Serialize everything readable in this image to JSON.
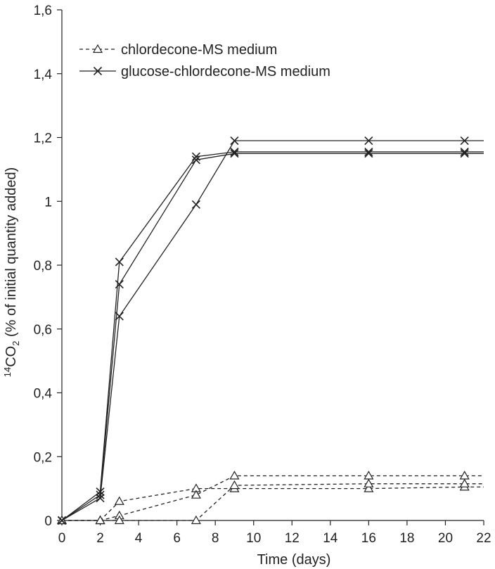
{
  "chart_data": {
    "type": "line",
    "xlabel": "Time (days)",
    "ylabel_prefix_sup": "14",
    "ylabel_main": "CO",
    "ylabel_sub": "2",
    "ylabel_suffix": " (% of initial quantity added)",
    "xlim": [
      0,
      22
    ],
    "ylim": [
      0,
      1.6
    ],
    "xticks": [
      "0",
      "2",
      "4",
      "6",
      "8",
      "10",
      "12",
      "14",
      "16",
      "18",
      "20",
      "22"
    ],
    "yticks": [
      "0",
      "0,2",
      "0,4",
      "0,6",
      "0,8",
      "1",
      "1,2",
      "1,4",
      "1,6"
    ],
    "x": [
      0,
      2,
      3,
      7,
      9,
      16,
      21,
      22
    ],
    "legend": [
      {
        "label": "chlordecone-MS medium",
        "marker": "triangle",
        "dash": "dashed"
      },
      {
        "label": "glucose-chlordecone-MS medium",
        "marker": "x",
        "dash": "solid"
      }
    ],
    "series": [
      {
        "group": "chlordecone-MS medium",
        "points": [
          [
            0,
            0
          ],
          [
            2,
            0
          ],
          [
            3,
            0.06
          ],
          [
            7,
            0.1
          ],
          [
            9,
            0.1
          ],
          [
            16,
            0.1
          ],
          [
            21,
            0.105
          ],
          [
            22,
            0.105
          ]
        ]
      },
      {
        "group": "chlordecone-MS medium",
        "points": [
          [
            0,
            0
          ],
          [
            2,
            0
          ],
          [
            3,
            0.015
          ],
          [
            7,
            0.08
          ],
          [
            9,
            0.14
          ],
          [
            16,
            0.14
          ],
          [
            21,
            0.14
          ],
          [
            22,
            0.14
          ]
        ]
      },
      {
        "group": "chlordecone-MS medium",
        "points": [
          [
            0,
            0
          ],
          [
            2,
            0
          ],
          [
            3,
            0
          ],
          [
            7,
            0
          ],
          [
            9,
            0.11
          ],
          [
            16,
            0.115
          ],
          [
            21,
            0.115
          ],
          [
            22,
            0.115
          ]
        ]
      },
      {
        "group": "glucose-chlordecone-MS medium",
        "points": [
          [
            0,
            0
          ],
          [
            2,
            0.09
          ],
          [
            3,
            0.81
          ],
          [
            7,
            1.14
          ],
          [
            9,
            1.155
          ],
          [
            16,
            1.155
          ],
          [
            21,
            1.155
          ],
          [
            22,
            1.155
          ]
        ]
      },
      {
        "group": "glucose-chlordecone-MS medium",
        "points": [
          [
            0,
            0
          ],
          [
            2,
            0.08
          ],
          [
            3,
            0.74
          ],
          [
            7,
            1.13
          ],
          [
            9,
            1.15
          ],
          [
            16,
            1.15
          ],
          [
            21,
            1.15
          ],
          [
            22,
            1.15
          ]
        ]
      },
      {
        "group": "glucose-chlordecone-MS medium",
        "points": [
          [
            0,
            0
          ],
          [
            2,
            0.07
          ],
          [
            3,
            0.64
          ],
          [
            7,
            0.99
          ],
          [
            9,
            1.19
          ],
          [
            16,
            1.19
          ],
          [
            21,
            1.19
          ],
          [
            22,
            1.19
          ]
        ]
      }
    ],
    "colors": {
      "axis": "#222222",
      "series": "#222222"
    }
  }
}
